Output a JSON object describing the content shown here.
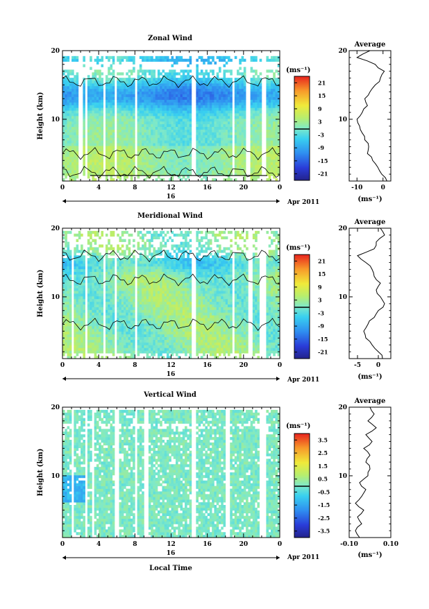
{
  "figure": {
    "bottom_xlabel": "Local Time",
    "date_label": "Apr 2011",
    "day_label": "16",
    "x_ticks": [
      "0",
      "4",
      "8",
      "12",
      "16",
      "20",
      "0"
    ],
    "y_ticks": [
      "20",
      "10"
    ],
    "ylabel": "Height (km)"
  },
  "chart_data": [
    {
      "type": "heatmap",
      "title": "Zonal Wind",
      "ylabel": "Height (km)",
      "xlim": [
        0,
        24
      ],
      "ylim": [
        1,
        20
      ],
      "colorbar": {
        "unit": "(ms⁻¹)",
        "ticks": [
          "21",
          "15",
          "9",
          "3",
          "-3",
          "-9",
          "-15",
          "-21"
        ],
        "range": [
          -24,
          24
        ]
      },
      "profile": {
        "title": "Average",
        "xlabel": "(ms⁻¹)",
        "xticks": [
          "-10",
          "0"
        ],
        "xlim": [
          -13,
          3
        ],
        "y": [
          1,
          2,
          3,
          4,
          5,
          6,
          7,
          8,
          9,
          10,
          11,
          12,
          13,
          14,
          15,
          16,
          17,
          18,
          19,
          20
        ],
        "values": [
          1.5,
          -0.5,
          -2,
          -4,
          -6,
          -5.5,
          -7,
          -8,
          -9,
          -10,
          -8,
          -6,
          -7,
          -5,
          -3,
          -1,
          0.5,
          -3,
          -10,
          -5
        ]
      }
    },
    {
      "type": "heatmap",
      "title": "Meridional Wind",
      "ylabel": "Height (km)",
      "xlim": [
        0,
        24
      ],
      "ylim": [
        1,
        20
      ],
      "colorbar": {
        "unit": "(ms⁻¹)",
        "ticks": [
          "21",
          "15",
          "9",
          "3",
          "-3",
          "-9",
          "-15",
          "-21"
        ],
        "range": [
          -24,
          24
        ]
      },
      "profile": {
        "title": "Average",
        "xlabel": "(ms⁻¹)",
        "xticks": [
          "-5",
          "0"
        ],
        "xlim": [
          -7,
          3
        ],
        "y": [
          1,
          2,
          3,
          4,
          5,
          6,
          7,
          8,
          9,
          10,
          11,
          12,
          13,
          14,
          15,
          16,
          17,
          18,
          19,
          20
        ],
        "values": [
          1,
          0,
          -1.5,
          -3,
          -3.5,
          -2.5,
          -1,
          0,
          1.5,
          0.5,
          -0.5,
          0.5,
          -1,
          -1.5,
          -3,
          -5,
          -1,
          -0.5,
          1.5,
          0.5
        ]
      }
    },
    {
      "type": "heatmap",
      "title": "Vertical Wind",
      "ylabel": "Height (km)",
      "xlim": [
        0,
        24
      ],
      "ylim": [
        1,
        20
      ],
      "colorbar": {
        "unit": "(ms⁻¹)",
        "ticks": [
          "3.5",
          "2.5",
          "1.5",
          "0.5",
          "-0.5",
          "-1.5",
          "-2.5",
          "-3.5"
        ],
        "range": [
          -4,
          4
        ]
      },
      "profile": {
        "title": "Average",
        "xlabel": "(ms⁻¹)",
        "xticks": [
          "-0.10",
          "0.10"
        ],
        "xlim": [
          -0.1,
          0.1
        ],
        "y": [
          1,
          2,
          3,
          4,
          5,
          6,
          7,
          8,
          9,
          10,
          11,
          12,
          13,
          14,
          15,
          16,
          17,
          18,
          19,
          20
        ],
        "values": [
          -0.05,
          -0.07,
          -0.04,
          -0.06,
          -0.03,
          -0.07,
          -0.04,
          -0.02,
          -0.05,
          -0.01,
          0.0,
          -0.02,
          0.0,
          -0.03,
          0.01,
          -0.02,
          0.03,
          -0.01,
          0.02,
          0.0
        ]
      }
    }
  ]
}
